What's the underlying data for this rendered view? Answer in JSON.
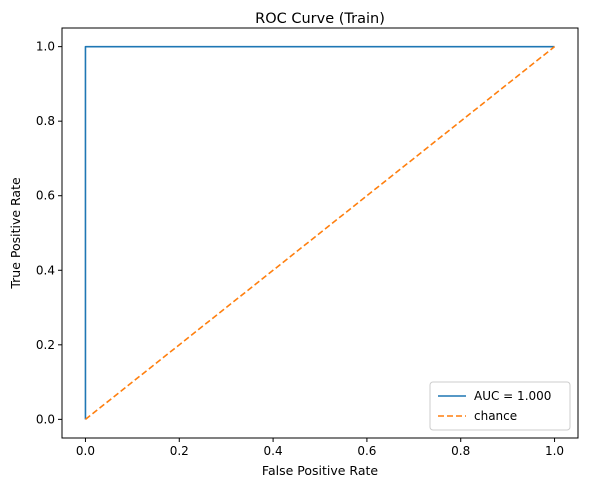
{
  "chart_data": {
    "type": "line",
    "title": "ROC Curve (Train)",
    "xlabel": "False Positive Rate",
    "ylabel": "True Positive Rate",
    "xlim": [
      -0.05,
      1.05
    ],
    "ylim": [
      -0.05,
      1.05
    ],
    "xticks": [
      0.0,
      0.2,
      0.4,
      0.6,
      0.8,
      1.0
    ],
    "yticks": [
      0.0,
      0.2,
      0.4,
      0.6,
      0.8,
      1.0
    ],
    "xtick_labels": [
      "0.0",
      "0.2",
      "0.4",
      "0.6",
      "0.8",
      "1.0"
    ],
    "ytick_labels": [
      "0.0",
      "0.2",
      "0.4",
      "0.6",
      "0.8",
      "1.0"
    ],
    "grid": false,
    "legend_position": "lower-right",
    "series": [
      {
        "name": "AUC = 1.000",
        "color": "#1f77b4",
        "style": "solid",
        "x": [
          0.0,
          0.0,
          1.0
        ],
        "y": [
          0.0,
          1.0,
          1.0
        ]
      },
      {
        "name": "chance",
        "color": "#ff7f0e",
        "style": "dashed",
        "x": [
          0.0,
          1.0
        ],
        "y": [
          0.0,
          1.0
        ]
      }
    ]
  }
}
